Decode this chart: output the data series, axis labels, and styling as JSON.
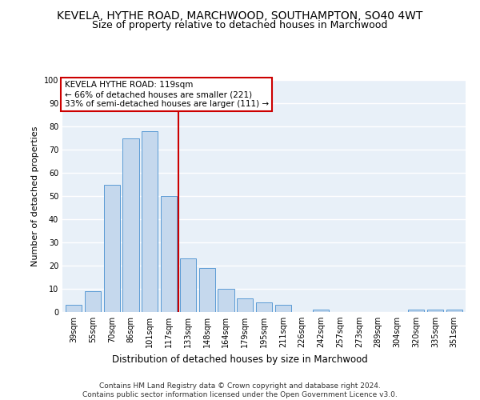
{
  "title1": "KEVELA, HYTHE ROAD, MARCHWOOD, SOUTHAMPTON, SO40 4WT",
  "title2": "Size of property relative to detached houses in Marchwood",
  "xlabel": "Distribution of detached houses by size in Marchwood",
  "ylabel": "Number of detached properties",
  "categories": [
    "39sqm",
    "55sqm",
    "70sqm",
    "86sqm",
    "101sqm",
    "117sqm",
    "133sqm",
    "148sqm",
    "164sqm",
    "179sqm",
    "195sqm",
    "211sqm",
    "226sqm",
    "242sqm",
    "257sqm",
    "273sqm",
    "289sqm",
    "304sqm",
    "320sqm",
    "335sqm",
    "351sqm"
  ],
  "values": [
    3,
    9,
    55,
    75,
    78,
    50,
    23,
    19,
    10,
    6,
    4,
    3,
    0,
    1,
    0,
    0,
    0,
    0,
    1,
    1,
    1
  ],
  "bar_color": "#c5d8ed",
  "bar_edge_color": "#5b9bd5",
  "vline_x": 5.5,
  "vline_color": "#cc0000",
  "annotation_box_text": "KEVELA HYTHE ROAD: 119sqm\n← 66% of detached houses are smaller (221)\n33% of semi-detached houses are larger (111) →",
  "box_edge_color": "#cc0000",
  "bg_color": "#e8f0f8",
  "grid_color": "#ffffff",
  "footer": "Contains HM Land Registry data © Crown copyright and database right 2024.\nContains public sector information licensed under the Open Government Licence v3.0.",
  "ylim": [
    0,
    100
  ],
  "title1_fontsize": 10,
  "title2_fontsize": 9,
  "annotation_fontsize": 7.5,
  "tick_fontsize": 7,
  "ylabel_fontsize": 8,
  "xlabel_fontsize": 8.5,
  "footer_fontsize": 6.5
}
